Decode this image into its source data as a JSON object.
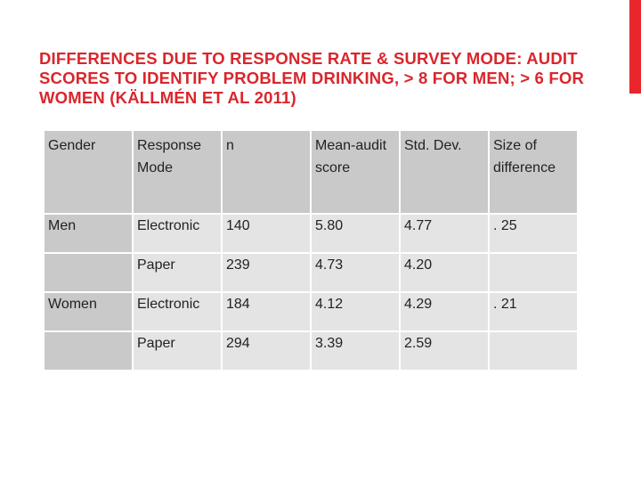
{
  "slide": {
    "title": "DIFFERENCES DUE TO RESPONSE RATE & SURVEY MODE: AUDIT SCORES TO IDENTIFY PROBLEM DRINKING, > 8 FOR MEN; > 6 FOR WOMEN (KÄLLMÉN ET AL 2011)",
    "accent_color": "#e8262b",
    "title_color": "#d9262c"
  },
  "table": {
    "headers": [
      "Gender",
      "Response Mode",
      "n",
      "Mean-audit score",
      "Std. Dev.",
      "Size of difference"
    ],
    "rows": [
      [
        "Men",
        "Electronic",
        "140",
        "5.80",
        "4.77",
        ". 25"
      ],
      [
        "",
        "Paper",
        "239",
        "4.73",
        "4.20",
        ""
      ],
      [
        "Women",
        "Electronic",
        "184",
        "4.12",
        "4.29",
        ". 21"
      ],
      [
        "",
        "Paper",
        "294",
        "3.39",
        "2.59",
        ""
      ]
    ]
  }
}
